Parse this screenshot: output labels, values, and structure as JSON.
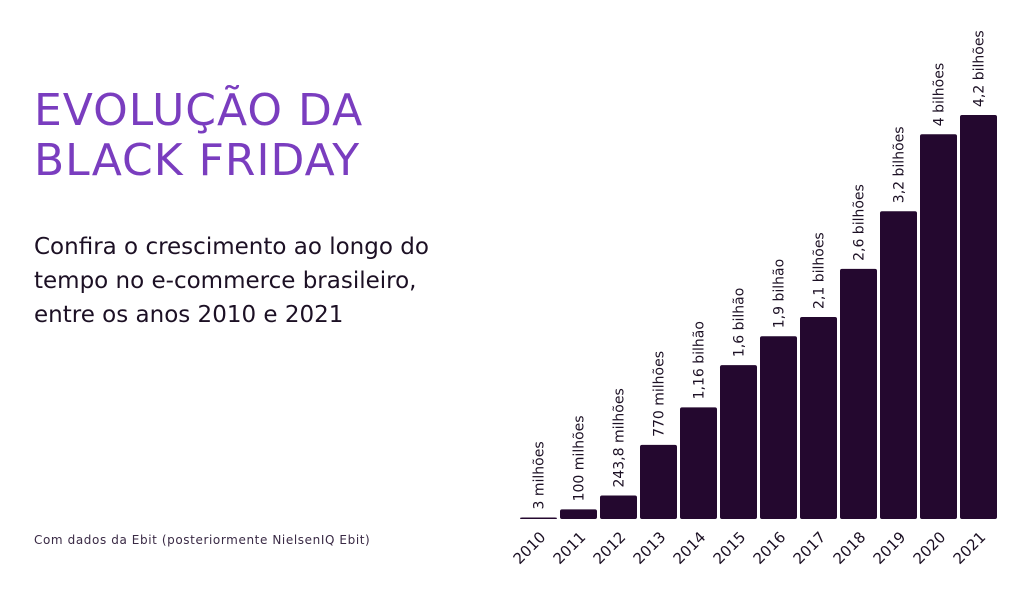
{
  "header": {
    "title_line1": "EVOLUÇÃO DA",
    "title_line2": "BLACK FRIDAY",
    "subtitle_line1": "Confira o crescimento ao longo do",
    "subtitle_line2": "tempo no e-commerce brasileiro,",
    "subtitle_line3": "entre os anos 2010 e 2021"
  },
  "footer": {
    "source": "Com dados da Ebit (posteriormente NielsenIQ Ebit)"
  },
  "colors": {
    "title": "#7a3dbf",
    "bar": "#24082f",
    "text": "#1c1024"
  },
  "chart_data": {
    "type": "bar",
    "categories": [
      "2010",
      "2011",
      "2012",
      "2013",
      "2014",
      "2015",
      "2016",
      "2017",
      "2018",
      "2019",
      "2020",
      "2021"
    ],
    "values": [
      0.003,
      0.1,
      0.2438,
      0.77,
      1.16,
      1.6,
      1.9,
      2.1,
      2.6,
      3.2,
      4.0,
      4.2
    ],
    "value_unit": "bilhões",
    "value_labels": [
      "3 milhões",
      "100 milhões",
      "243,8 milhões",
      "770 milhões",
      "1,16 bilhão",
      "1,6 bilhão",
      "1,9 bilhão",
      "2,1 bilhões",
      "2,6 bilhões",
      "3,2 bilhões",
      "4 bilhões",
      "4,2 bilhões"
    ],
    "title": "EVOLUÇÃO DA BLACK FRIDAY",
    "xlabel": "",
    "ylabel": "",
    "ylim": [
      0,
      4.2
    ],
    "grid": false,
    "legend": "none"
  }
}
